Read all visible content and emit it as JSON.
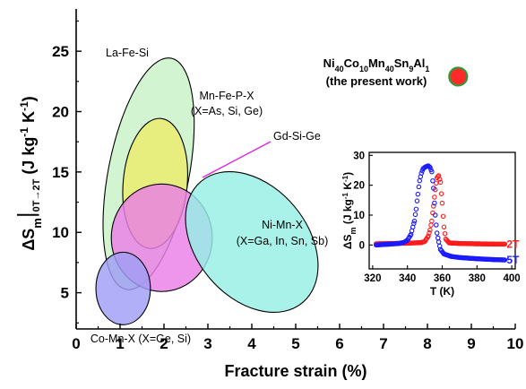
{
  "chart_data": [
    {
      "type": "scatter",
      "xlabel": "Fracture strain (%)",
      "ylabel_parts": {
        "delta": "ΔS",
        "sub": "m",
        "bar": "|",
        "field_sub": "0T→2T",
        "unit_open": " (J kg",
        "exp": "-1",
        "unit_mid": " K",
        "unit_close": ")"
      },
      "xlim": [
        0,
        10
      ],
      "ylim": [
        2,
        28.5
      ],
      "x_ticks": [
        0,
        1,
        2,
        3,
        4,
        5,
        6,
        7,
        8,
        9,
        10
      ],
      "y_ticks": [
        5,
        10,
        15,
        20,
        25
      ],
      "grid": false,
      "regions": [
        {
          "name": "La-Fe-Si",
          "label_lines": [
            "La-Fe-Si"
          ],
          "cx": 1.65,
          "cy": 14.85,
          "rx": 0.92,
          "ry": 9.75,
          "rot": 11,
          "color": "#c9f2c6"
        },
        {
          "name": "Mn-Fe-P-X",
          "label_lines": [
            "Mn-Fe-P-X",
            "(X=As, Si, Ge)"
          ],
          "cx": 1.8,
          "cy": 14.05,
          "rx": 0.73,
          "ry": 5.4,
          "rot": 5,
          "color": "#eced6a"
        },
        {
          "name": "Gd-Si-Ge",
          "label_lines": [
            "Gd-Si-Ge"
          ],
          "cx": 1.95,
          "cy": 9.55,
          "rx": 1.15,
          "ry": 4.45,
          "rot": 0,
          "color": "#ea7fe6"
        },
        {
          "name": "Ni-Mn-X",
          "label_lines": [
            "Ni-Mn-X",
            "(X=Ga, In, Sn, Sb)"
          ],
          "cx": 4.0,
          "cy": 9.2,
          "rx": 1.8,
          "ry": 4.6,
          "rot": 50,
          "color": "#95efe5"
        },
        {
          "name": "Co-Mn-X",
          "label_lines": [
            "Co-Mn-X (X=Ge, Si)"
          ],
          "cx": 1.07,
          "cy": 5.35,
          "rx": 0.62,
          "ry": 3.0,
          "rot": 0,
          "color": "#9f9ef5"
        }
      ],
      "present_work": {
        "formula": [
          [
            "Ni",
            "40"
          ],
          [
            "Co",
            "10"
          ],
          [
            "Mn",
            "40"
          ],
          [
            "Sn",
            "9"
          ],
          [
            "Al",
            "1"
          ]
        ],
        "note": "(the present work)",
        "x": 8.7,
        "y": 22.9,
        "fill": "#ff2a2a",
        "edge": "#2e9a3b"
      }
    },
    {
      "type": "scatter",
      "xlabel": "T (K)",
      "ylabel_parts": {
        "delta": "ΔS",
        "sub": "m",
        "unit_open": " (J kg",
        "exp": "-1",
        "unit_mid": " K",
        "unit_close": ")"
      },
      "xlim": [
        318,
        402
      ],
      "ylim": [
        -8,
        31
      ],
      "x_ticks": [
        320,
        340,
        360,
        380,
        400
      ],
      "y_ticks": [
        0,
        10,
        20,
        30
      ],
      "series": [
        {
          "name": "2T",
          "color": "#ff1a1a",
          "points": [
            [
              322,
              0.4
            ],
            [
              330,
              0.5
            ],
            [
              340,
              0.6
            ],
            [
              348,
              0.8
            ],
            [
              350,
              1.2
            ],
            [
              352,
              3.0
            ],
            [
              353,
              5.0
            ],
            [
              354,
              8.0
            ],
            [
              355,
              13.0
            ],
            [
              356,
              18.5
            ],
            [
              357,
              22.5
            ],
            [
              358,
              23.2
            ],
            [
              359,
              21.0
            ],
            [
              360,
              14.0
            ],
            [
              361,
              6.0
            ],
            [
              362,
              2.0
            ],
            [
              364,
              0.7
            ],
            [
              370,
              0.5
            ],
            [
              380,
              0.4
            ],
            [
              390,
              0.3
            ],
            [
              396,
              0.3
            ]
          ]
        },
        {
          "name": "5T",
          "color": "#1a1aff",
          "points": [
            [
              322,
              0.0
            ],
            [
              330,
              0.3
            ],
            [
              335,
              0.5
            ],
            [
              338,
              0.9
            ],
            [
              340,
              1.6
            ],
            [
              342,
              3.5
            ],
            [
              344,
              8.0
            ],
            [
              345,
              12.0
            ],
            [
              346,
              17.0
            ],
            [
              347,
              21.5
            ],
            [
              348,
              24.0
            ],
            [
              349,
              25.5
            ],
            [
              350,
              26.0
            ],
            [
              351,
              26.3
            ],
            [
              352,
              26.5
            ],
            [
              353,
              26.0
            ],
            [
              354,
              24.5
            ],
            [
              355,
              19.0
            ],
            [
              356,
              10.0
            ],
            [
              357,
              4.0
            ],
            [
              358,
              1.0
            ],
            [
              359,
              -1.5
            ],
            [
              361,
              -3.0
            ],
            [
              365,
              -3.8
            ],
            [
              370,
              -4.2
            ],
            [
              380,
              -4.6
            ],
            [
              390,
              -4.9
            ],
            [
              396,
              -5.0
            ]
          ]
        }
      ]
    }
  ]
}
